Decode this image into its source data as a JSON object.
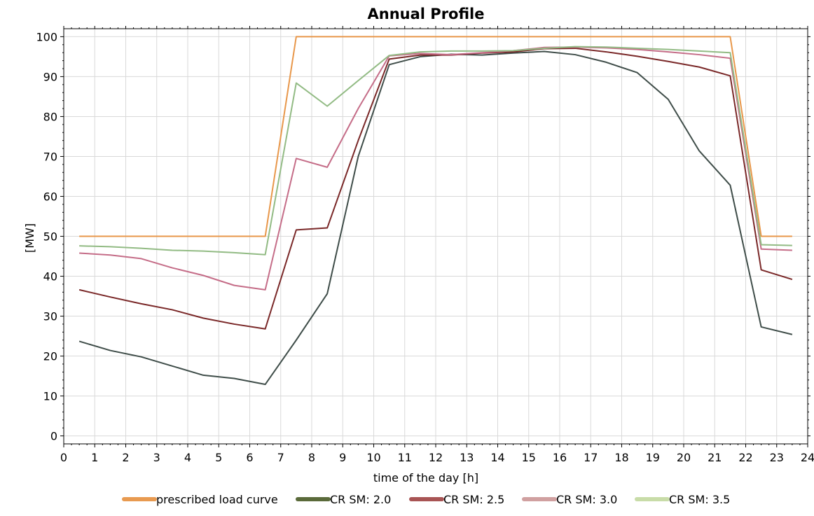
{
  "chart_data": {
    "type": "line",
    "title": "Annual Profile",
    "xlabel": "time of the day [h]",
    "ylabel": "[MW]",
    "xlim": [
      0,
      24
    ],
    "ylim": [
      -2,
      102
    ],
    "xticks": [
      0,
      1,
      2,
      3,
      4,
      5,
      6,
      7,
      8,
      9,
      10,
      11,
      12,
      13,
      14,
      15,
      16,
      17,
      18,
      19,
      20,
      21,
      22,
      23,
      24
    ],
    "yticks": [
      0,
      10,
      20,
      30,
      40,
      50,
      60,
      70,
      80,
      90,
      100
    ],
    "grid": true,
    "legend_position": "bottom",
    "series": [
      {
        "name": "prescribed load curve",
        "color": "#e8974a",
        "legend_color": "#e89a50",
        "x": [
          0.5,
          6.5,
          7.5,
          21.5,
          22.5,
          23.5
        ],
        "y": [
          50,
          50,
          100,
          100,
          50,
          50
        ]
      },
      {
        "name": "CR SM: 2.0",
        "color": "#3f4d49",
        "legend_color": "#5a6a3a",
        "x": [
          0.5,
          1.5,
          2.5,
          3.5,
          4.5,
          5.5,
          6.5,
          7.5,
          8.5,
          9.5,
          10.5,
          11.5,
          12.5,
          13.5,
          14.5,
          15.5,
          16.5,
          17.5,
          18.5,
          19.5,
          20.5,
          21.5,
          22.5,
          23.5
        ],
        "y": [
          23.7,
          21.4,
          19.8,
          17.5,
          15.2,
          14.4,
          12.9,
          24,
          35.6,
          70,
          93,
          95,
          95.6,
          95.4,
          95.9,
          96.3,
          95.5,
          93.6,
          91,
          84.3,
          71.4,
          62.8,
          27.3,
          25.4
        ]
      },
      {
        "name": "CR SM: 2.5",
        "color": "#7a2828",
        "legend_color": "#a85454",
        "x": [
          0.5,
          1.5,
          2.5,
          3.5,
          4.5,
          5.5,
          6.5,
          7.5,
          8.5,
          9.5,
          10.5,
          11.5,
          12.5,
          13.5,
          14.5,
          15.5,
          16.5,
          17.5,
          18.5,
          19.5,
          20.5,
          21.5,
          22.5,
          23.5
        ],
        "y": [
          36.6,
          34.8,
          33.1,
          31.6,
          29.5,
          28.0,
          26.8,
          51.6,
          52.1,
          74,
          94.4,
          95.4,
          95.4,
          95.9,
          96.2,
          97.0,
          97.1,
          96.2,
          95.1,
          93.8,
          92.4,
          90.2,
          41.6,
          39.2
        ]
      },
      {
        "name": "CR SM: 3.0",
        "color": "#c56d88",
        "legend_color": "#d0a0a0",
        "x": [
          0.5,
          1.5,
          2.5,
          3.5,
          4.5,
          5.5,
          6.5,
          7.5,
          8.5,
          9.5,
          10.5,
          11.5,
          12.5,
          13.5,
          14.5,
          15.5,
          16.5,
          17.5,
          18.5,
          19.5,
          20.5,
          21.5,
          22.5,
          23.5
        ],
        "y": [
          45.8,
          45.3,
          44.4,
          42.1,
          40.2,
          37.7,
          36.6,
          69.5,
          67.3,
          82,
          95.2,
          95.8,
          95.5,
          96.0,
          96.5,
          97.3,
          97.4,
          97.2,
          96.8,
          96.2,
          95.5,
          94.6,
          46.8,
          46.5
        ]
      },
      {
        "name": "CR SM: 3.5",
        "color": "#92bb84",
        "legend_color": "#c8dca8",
        "x": [
          0.5,
          1.5,
          2.5,
          3.5,
          4.5,
          5.5,
          6.5,
          7.5,
          8.5,
          9.5,
          10.5,
          11.5,
          12.5,
          13.5,
          14.5,
          15.5,
          16.5,
          17.5,
          18.5,
          19.5,
          20.5,
          21.5,
          22.5,
          23.5
        ],
        "y": [
          47.6,
          47.4,
          47.0,
          46.5,
          46.3,
          45.9,
          45.4,
          88.4,
          82.6,
          89,
          95.3,
          96.2,
          96.4,
          96.4,
          96.5,
          97.1,
          97.5,
          97.4,
          97.1,
          96.8,
          96.4,
          96.0,
          47.9,
          47.7
        ]
      }
    ]
  }
}
